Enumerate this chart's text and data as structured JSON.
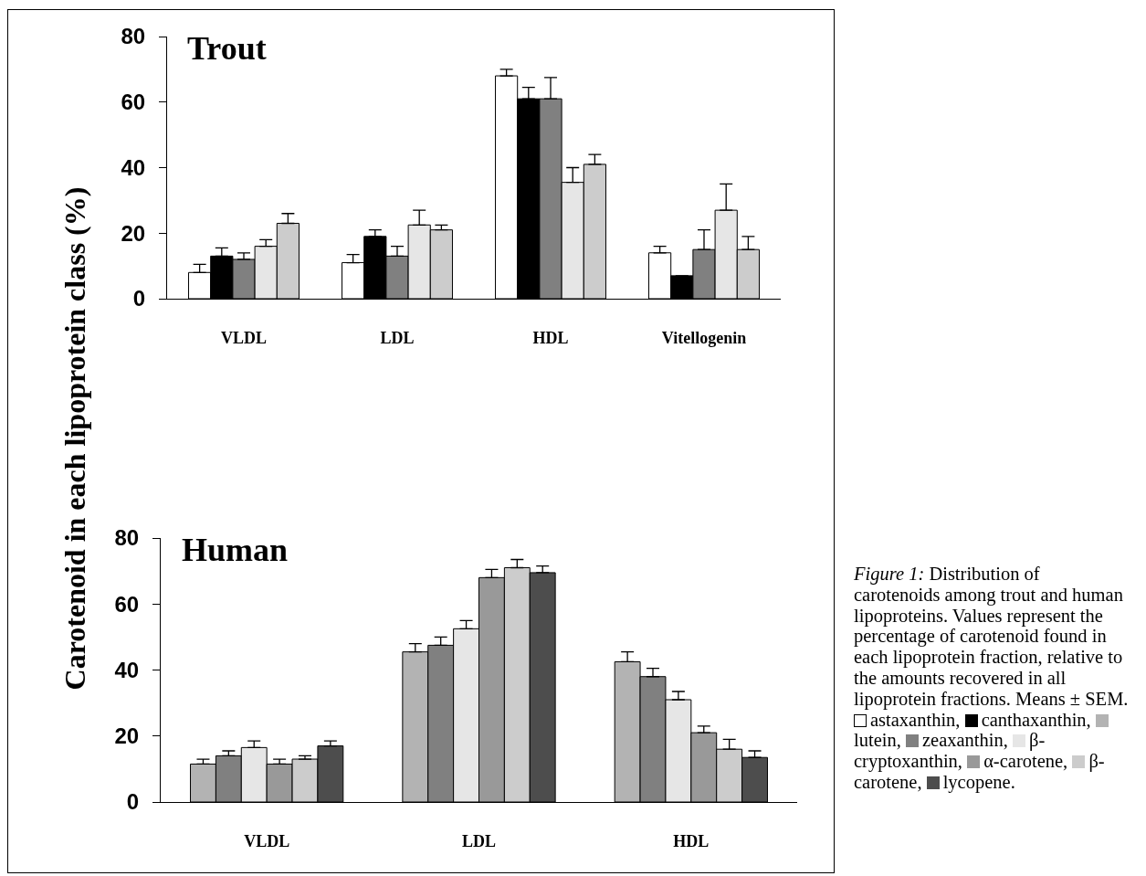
{
  "chart_data": [
    {
      "type": "bar",
      "title": "Trout",
      "ylabel": "Carotenoid in each lipoprotein class (%)",
      "categories": [
        "VLDL",
        "LDL",
        "HDL",
        "Vitellogenin"
      ],
      "ylim": [
        0,
        80
      ],
      "yticks": [
        0,
        20,
        40,
        60,
        80
      ],
      "legend": "right",
      "series": [
        {
          "name": "astaxanthin,",
          "color": "#ffffff",
          "values": [
            8,
            11,
            68,
            14
          ],
          "errors": [
            2.5,
            2.5,
            2,
            2
          ]
        },
        {
          "name": "canthaxanthin,",
          "color": "#000000",
          "values": [
            13,
            19,
            61,
            7
          ],
          "errors": [
            2.5,
            2,
            3.5,
            null
          ]
        },
        {
          "color": "#808080",
          "values": [
            12,
            13,
            61,
            15
          ],
          "errors": [
            2,
            3,
            6.5,
            6
          ]
        },
        {
          "color": "#e6e6e6",
          "values": [
            16,
            22.5,
            35.5,
            27
          ],
          "errors": [
            2,
            4.5,
            4.5,
            8
          ]
        },
        {
          "color": "#cccccc",
          "values": [
            23,
            21,
            41,
            15
          ],
          "errors": [
            3,
            1.5,
            3,
            4
          ]
        }
      ]
    },
    {
      "type": "bar",
      "title": "Human",
      "categories": [
        "VLDL",
        "LDL",
        "HDL"
      ],
      "ylim": [
        0,
        80
      ],
      "yticks": [
        0,
        20,
        40,
        60,
        80
      ],
      "legend": "right",
      "annotations": [
        "Figure 1:",
        "Distribution of carotenoids among trout and human lipoproteins. Values represent the percentage of carotenoid found in each lipoprotein fraction, relative to the amounts recovered in all lipoprotein fractions. Means ± SEM."
      ],
      "series": [
        {
          "name": "lutein,",
          "color": "#b3b3b3",
          "values": [
            11.5,
            45.5,
            42.5
          ],
          "errors": [
            1.5,
            2.5,
            3
          ]
        },
        {
          "name": "zeaxanthin,",
          "color": "#808080",
          "values": [
            14,
            47.5,
            38
          ],
          "errors": [
            1.5,
            2.5,
            2.5
          ]
        },
        {
          "name": "β-cryptoxanthin,",
          "color": "#e6e6e6",
          "values": [
            16.5,
            52.5,
            31
          ],
          "errors": [
            2,
            2.5,
            2.5
          ]
        },
        {
          "name": "α-carotene,",
          "color": "#999999",
          "values": [
            11.5,
            68,
            21
          ],
          "errors": [
            1.5,
            2.5,
            2
          ]
        },
        {
          "name": "β-carotene,",
          "color": "#cccccc",
          "values": [
            13,
            71,
            16
          ],
          "errors": [
            1,
            2.5,
            3
          ]
        },
        {
          "name": "lycopene.",
          "color": "#4d4d4d",
          "values": [
            17,
            69.5,
            13.5
          ],
          "errors": [
            1.5,
            2,
            2
          ]
        }
      ]
    }
  ]
}
